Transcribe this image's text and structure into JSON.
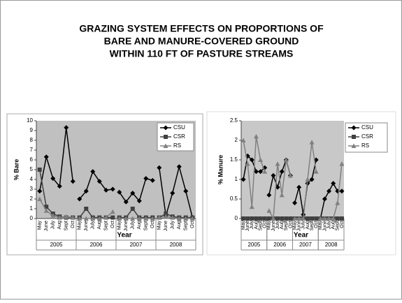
{
  "title": {
    "lines": [
      "GRAZING SYSTEM EFFECTS ON PROPORTIONS OF",
      "BARE AND MANURE-COVERED GROUND",
      "WITHIN 110 FT OF PASTURE STREAMS"
    ]
  },
  "chart_data": [
    {
      "type": "line",
      "y_label": "% Bare",
      "x_label": "Year",
      "groups": [
        {
          "name": "2005",
          "categories": [
            "May",
            "June",
            "July",
            "Aug",
            "Sept",
            "Oct"
          ]
        },
        {
          "name": "2006",
          "categories": [
            "May",
            "June",
            "July",
            "Aug",
            "Sept",
            "Oct"
          ]
        },
        {
          "name": "2007",
          "categories": [
            "May",
            "June",
            "July",
            "Aug",
            "Sept",
            "Oct"
          ]
        },
        {
          "name": "2008",
          "categories": [
            "May",
            "June",
            "July",
            "Aug",
            "Sept",
            "Oct"
          ]
        }
      ],
      "series": [
        {
          "name": "CSU",
          "color": "#000000",
          "marker": "diamond",
          "values": [
            [
              2.8,
              6.3,
              4.1,
              3.3,
              9.3,
              3.8
            ],
            [
              2,
              2.8,
              4.8,
              3.8,
              2.9,
              3
            ],
            [
              2.7,
              1.7,
              2.6,
              1.8,
              4.1,
              3.9
            ],
            [
              5.2,
              0.3,
              2.6,
              5.3,
              2.8,
              0.1
            ]
          ]
        },
        {
          "name": "CSR",
          "color": "#404040",
          "marker": "square",
          "values": [
            [
              5,
              1.2,
              0.5,
              0.2,
              0.1,
              0.1
            ],
            [
              0.1,
              1,
              0.1,
              0.1,
              0.1,
              0.1
            ],
            [
              0.1,
              0.1,
              1,
              0.1,
              0.1,
              0.1
            ],
            [
              0.1,
              0.5,
              0.2,
              0.1,
              0.1,
              0.1
            ]
          ]
        },
        {
          "name": "RS",
          "color": "#808080",
          "marker": "triangle",
          "values": [
            [
              2,
              0.8,
              0.3,
              0.1,
              0.2,
              0.1
            ],
            [
              0,
              0,
              0,
              0,
              0.1,
              0.7
            ],
            [
              0,
              0,
              0,
              0,
              0,
              0
            ],
            [
              0.1,
              0.2,
              0.1,
              0,
              0,
              0
            ]
          ]
        }
      ],
      "ylim": [
        0,
        10
      ],
      "yticks": [
        0,
        1,
        2,
        3,
        4,
        5,
        6,
        7,
        8,
        9,
        10
      ],
      "legend": "top-right",
      "plot_color": "#c0c0c0"
    },
    {
      "type": "line",
      "y_label": "% Manure",
      "x_label": "Year",
      "groups": [
        {
          "name": "2005",
          "categories": [
            "May",
            "June",
            "July",
            "Aug",
            "Sept",
            "Oct"
          ]
        },
        {
          "name": "2006",
          "categories": [
            "May",
            "June",
            "July",
            "Aug",
            "Sept",
            "Oct"
          ]
        },
        {
          "name": "2007",
          "categories": [
            "May",
            "June",
            "July",
            "Aug",
            "Sept",
            "Oct"
          ]
        },
        {
          "name": "2008",
          "categories": [
            "May",
            "June",
            "July",
            "Aug",
            "Sept",
            "Oct"
          ]
        }
      ],
      "series": [
        {
          "name": "CSU",
          "color": "#000000",
          "marker": "diamond",
          "values": [
            [
              1,
              1.6,
              1.5,
              1.2,
              1.2,
              1.3
            ],
            [
              0.6,
              1.1,
              0.8,
              1.2,
              1.5,
              1.1
            ],
            [
              0.4,
              0.8,
              0.1,
              0.9,
              1,
              1.5
            ],
            [
              0,
              0.5,
              0.7,
              0.9,
              0.7,
              0.7
            ]
          ]
        },
        {
          "name": "CSR",
          "color": "#404040",
          "marker": "square",
          "values": [
            [
              0,
              0,
              0,
              0,
              0,
              0
            ],
            [
              0,
              0,
              0,
              0,
              0,
              0
            ],
            [
              0,
              0,
              0,
              0,
              0,
              0
            ],
            [
              0,
              0,
              0,
              0,
              0,
              0
            ]
          ]
        },
        {
          "name": "RS",
          "color": "#808080",
          "marker": "triangle",
          "values": [
            [
              2,
              1.4,
              0.3,
              2.1,
              1.5,
              1.2
            ],
            [
              0.2,
              0,
              1.4,
              0.6,
              1.5,
              1.1
            ],
            [
              0,
              0,
              0,
              1,
              1.95,
              1.2
            ],
            [
              0,
              0,
              0,
              0,
              0.4,
              1.4
            ]
          ]
        }
      ],
      "ylim": [
        0,
        2.5
      ],
      "yticks": [
        0,
        0.5,
        1,
        1.5,
        2,
        2.5
      ],
      "legend": "top-right",
      "plot_color": "#c8c8c8"
    }
  ]
}
